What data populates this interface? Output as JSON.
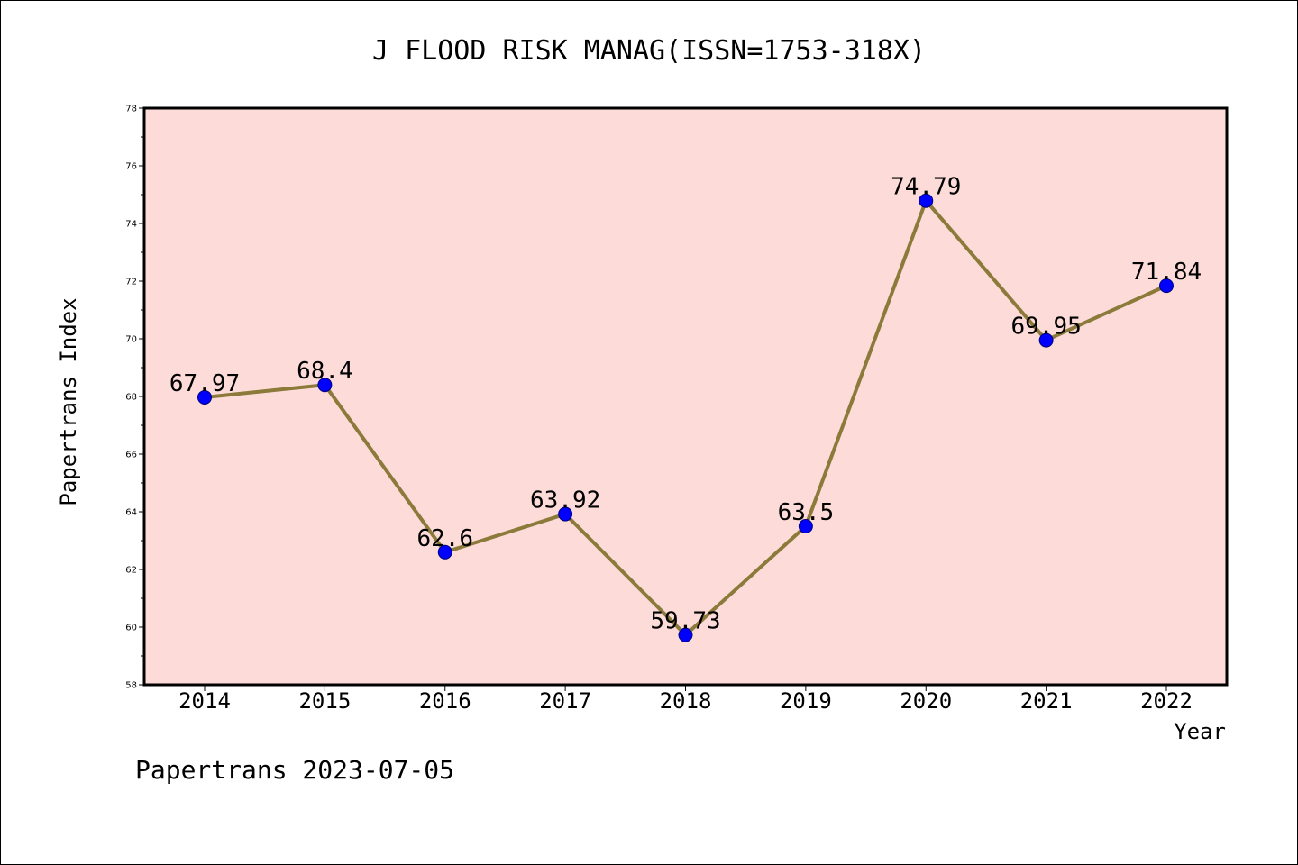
{
  "chart_data": {
    "type": "line",
    "title": "J FLOOD RISK MANAG(ISSN=1753-318X)",
    "xlabel": "Year",
    "ylabel": "Papertrans Index",
    "categories": [
      "2014",
      "2015",
      "2016",
      "2017",
      "2018",
      "2019",
      "2020",
      "2021",
      "2022"
    ],
    "series": [
      {
        "values": [
          67.97,
          68.4,
          62.6,
          63.92,
          59.73,
          63.5,
          74.79,
          69.95,
          71.84
        ],
        "labels": [
          "67.97",
          "68.4",
          "62.6",
          "63.92",
          "59.73",
          "63.5",
          "74.79",
          "69.95",
          "71.84"
        ]
      }
    ],
    "ylim": [
      58,
      78
    ],
    "yticks": [
      "58",
      "60",
      "62",
      "64",
      "66",
      "68",
      "70",
      "72",
      "74",
      "76",
      "78"
    ],
    "grid": false,
    "colors": {
      "plot_background": "#fddbd9",
      "line": "#8b7a3a",
      "marker": "#0000ff"
    }
  },
  "footer": "Papertrans 2023-07-05"
}
